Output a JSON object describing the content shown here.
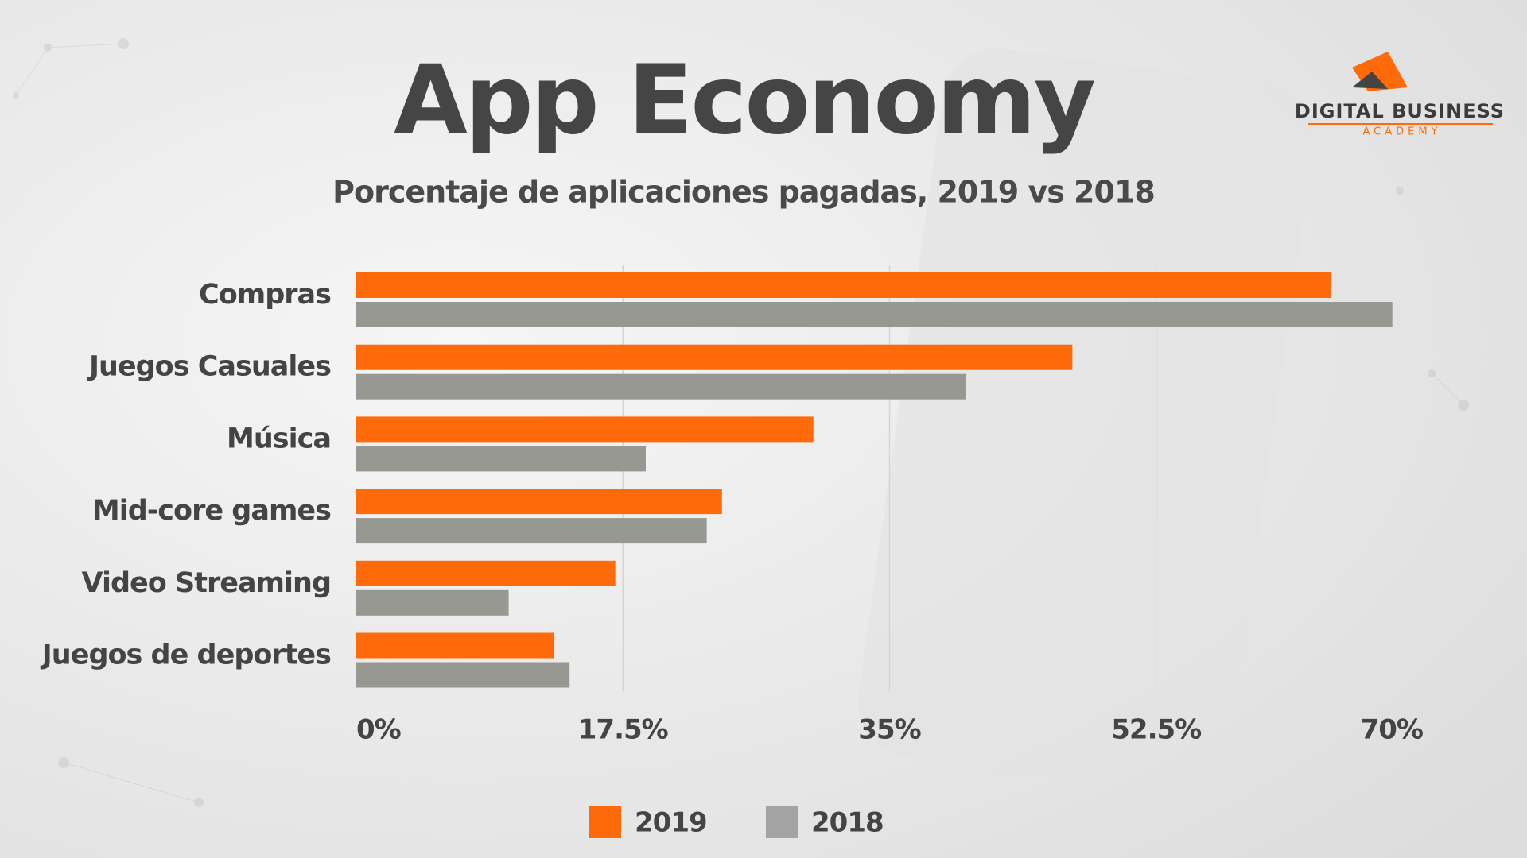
{
  "logo": {
    "name": "DIGITAL BUSINESS",
    "tagline": "ACADEMY"
  },
  "chart_data": {
    "type": "hbar",
    "title": "App Economy",
    "subtitle": "Porcentaje de aplicaciones pagadas, 2019 vs 2018",
    "categories": [
      "Compras",
      "Juegos Casuales",
      "Música",
      "Mid-core games",
      "Video Streaming",
      "Juegos de deportes"
    ],
    "series": [
      {
        "name": "2019",
        "color": "#ff6a0a",
        "values": [
          64,
          47,
          30,
          24,
          17,
          13
        ]
      },
      {
        "name": "2018",
        "color": "#969891",
        "values": [
          68,
          40,
          19,
          23,
          10,
          14
        ]
      }
    ],
    "xlim": [
      0,
      70
    ],
    "xticks": [
      {
        "value": 0,
        "label": "0%"
      },
      {
        "value": 17.5,
        "label": "17.5%"
      },
      {
        "value": 35,
        "label": "35%"
      },
      {
        "value": 52.5,
        "label": "52.5%"
      },
      {
        "value": 70,
        "label": "70%"
      }
    ],
    "grid": true,
    "legend": "bottom"
  }
}
